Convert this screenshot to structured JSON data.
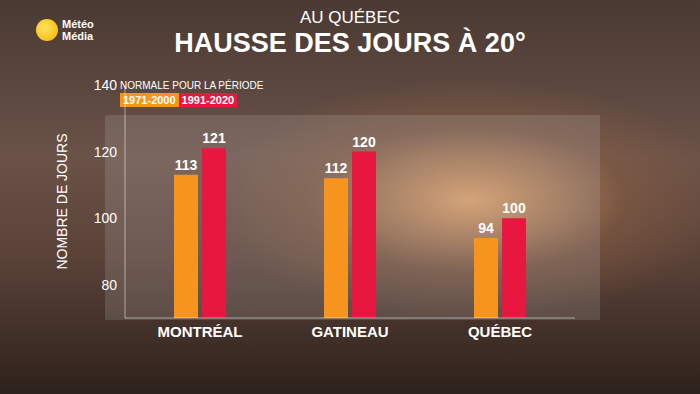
{
  "chart_data": {
    "type": "bar",
    "logo": [
      "Météo",
      "Média"
    ],
    "subtitle": "AU QUÉBEC",
    "title": "HAUSSE DES JOURS À 20°",
    "legend_title": "NORMALE POUR LA PÉRIODE",
    "y_label": "NOMBRE DE JOURS",
    "categories": [
      "MONTRÉAL",
      "GATINEAU",
      "QUÉBEC"
    ],
    "series": [
      {
        "name": "1971-2000",
        "color": "#f7941d",
        "values": [
          113,
          112,
          94
        ]
      },
      {
        "name": "1991-2020",
        "color": "#e8173f",
        "values": [
          121,
          120,
          100
        ]
      }
    ],
    "ylim": [
      70,
      140
    ],
    "yticks": [
      80,
      100,
      120,
      140
    ],
    "grid": false,
    "legend": "upper left",
    "data_labels": true
  }
}
